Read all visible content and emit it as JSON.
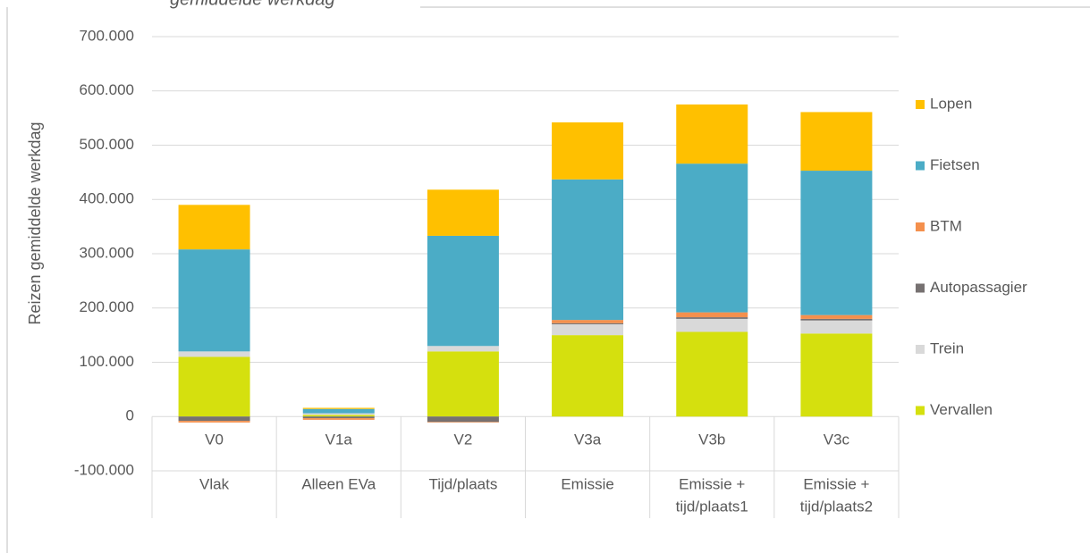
{
  "chart_data": {
    "type": "stacked_bar",
    "title": "gemiddelde werkdag",
    "y_label": "Reizen gemiddelde werkdag",
    "categories": [
      "V0",
      "V1a",
      "V2",
      "V3a",
      "V3b",
      "V3c"
    ],
    "group_labels": [
      [
        "Vlak"
      ],
      [
        "Alleen EVa"
      ],
      [
        "Tijd/plaats"
      ],
      [
        "Emissie"
      ],
      [
        "Emissie +",
        "tijd/plaats1"
      ],
      [
        "Emissie +",
        "tijd/plaats2"
      ]
    ],
    "series": [
      {
        "name": "Vervallen",
        "color": "#d5e00e",
        "values": [
          110000,
          3000,
          120000,
          150000,
          156000,
          153000
        ]
      },
      {
        "name": "Trein",
        "color": "#d9d9d9",
        "values": [
          10000,
          3000,
          10000,
          20000,
          24000,
          24000
        ]
      },
      {
        "name": "Autopassagier",
        "color": "#767171",
        "values": [
          -8000,
          -3000,
          -10000,
          2000,
          3000,
          3000
        ]
      },
      {
        "name": "BTM",
        "color": "#f4904d",
        "values": [
          -3000,
          -3000,
          -1000,
          6000,
          9000,
          7000
        ]
      },
      {
        "name": "Fietsen",
        "color": "#4bacc6",
        "values": [
          188000,
          8000,
          203000,
          259000,
          274000,
          266000
        ]
      },
      {
        "name": "Lopen",
        "color": "#ffc000",
        "values": [
          82000,
          2000,
          85000,
          105000,
          109000,
          108000
        ]
      }
    ],
    "ylim": [
      -100000,
      700000
    ],
    "yticks": [
      {
        "value": -100000,
        "label": "-100.000"
      },
      0,
      {
        "value": 100000,
        "label": "100.000"
      },
      {
        "value": 200000,
        "label": "200.000"
      },
      {
        "value": 300000,
        "label": "300.000"
      },
      {
        "value": 400000,
        "label": "400.000"
      },
      {
        "value": 500000,
        "label": "500.000"
      },
      {
        "value": 600000,
        "label": "600.000"
      },
      {
        "value": 700000,
        "label": "700.000"
      }
    ],
    "grid": true,
    "legend": "right"
  }
}
